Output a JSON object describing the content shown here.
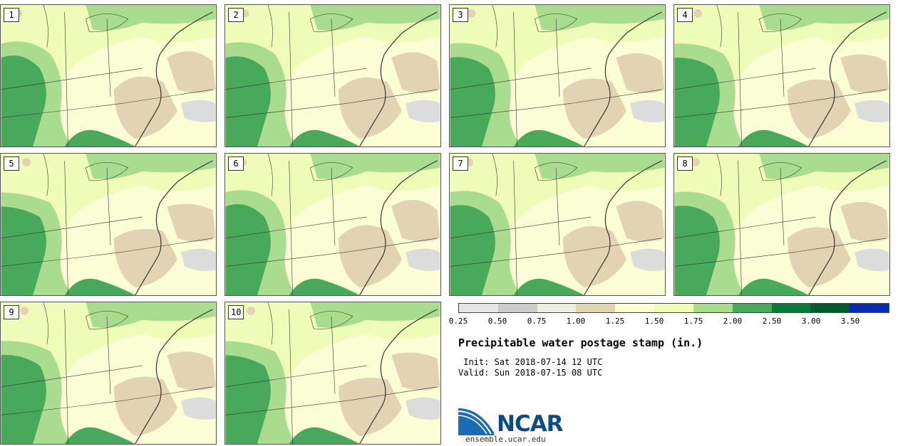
{
  "page": {
    "title": "Precipitable water postage stamp (in.)",
    "init_text": " Init: Sat 2018-07-14 12 UTC",
    "valid_text": "Valid: Sun 2018-07-15 08 UTC",
    "logo_text": "NCAR",
    "url_text": "ensemble.ucar.edu"
  },
  "members": [
    {
      "label": "1"
    },
    {
      "label": "2"
    },
    {
      "label": "3"
    },
    {
      "label": "4"
    },
    {
      "label": "5"
    },
    {
      "label": "6"
    },
    {
      "label": "7"
    },
    {
      "label": "8"
    },
    {
      "label": "9"
    },
    {
      "label": "10"
    }
  ],
  "colorbar": {
    "tick_labels": [
      "0.25",
      "0.50",
      "0.75",
      "1.00",
      "1.25",
      "1.50",
      "1.75",
      "2.00",
      "2.50",
      "3.00",
      "3.50"
    ],
    "colors": [
      "#e6e6e6",
      "#cccccc",
      "#eeeee4",
      "#e3d3b5",
      "#fdfdd2",
      "#eefcb8",
      "#a9dc8e",
      "#48a95a",
      "#0a7a3a",
      "#005a2c",
      "#0a2cb0"
    ]
  },
  "map_colors": {
    "land_light": "#fbfdd4",
    "tan": "#e3d3b5",
    "light_green": "#eefcb8",
    "mid_green": "#a9dc8e",
    "green": "#48a95a",
    "dark_green": "#0a7a3a",
    "gray": "#dcdcdc",
    "border": "#333333"
  }
}
